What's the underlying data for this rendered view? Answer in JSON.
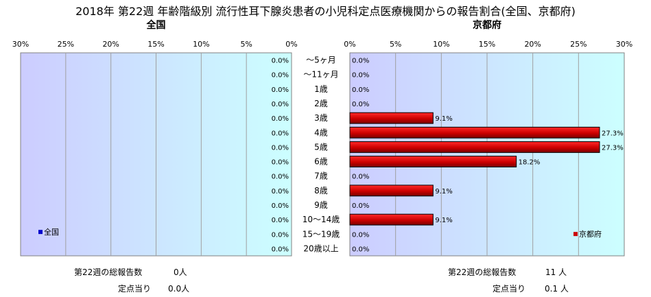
{
  "title": "2018年 第22週 年齢階級別 流行性耳下腺炎患者の小児科定点医療機関からの報告割合(全国、京都府)",
  "chart_data": [
    {
      "type": "bar",
      "orientation": "horizontal",
      "title": "全国",
      "series": [
        {
          "name": "全国",
          "values": [
            0.0,
            0.0,
            0.0,
            0.0,
            0.0,
            0.0,
            0.0,
            0.0,
            0.0,
            0.0,
            0.0,
            0.0,
            0.0,
            0.0
          ],
          "color": "#0000cc"
        }
      ],
      "value_labels": [
        "0.0%",
        "0.0%",
        "0.0%",
        "0.0%",
        "0.0%",
        "0.0%",
        "0.0%",
        "0.0%",
        "0.0%",
        "0.0%",
        "0.0%",
        "0.0%",
        "0.0%",
        "0.0%"
      ],
      "xlim": [
        0,
        30
      ],
      "x_reversed": true,
      "x_ticks": [
        "30%",
        "25%",
        "20%",
        "15%",
        "10%",
        "5%",
        "0%"
      ],
      "background": "#ccccff",
      "grid": true,
      "legend": "bottom-left"
    },
    {
      "type": "bar",
      "orientation": "horizontal",
      "title": "京都府",
      "series": [
        {
          "name": "京都府",
          "values": [
            0.0,
            0.0,
            0.0,
            0.0,
            9.1,
            27.3,
            27.3,
            18.2,
            0.0,
            9.1,
            0.0,
            9.1,
            0.0,
            0.0
          ],
          "color": "#cc0000"
        }
      ],
      "value_labels": [
        "0.0%",
        "0.0%",
        "0.0%",
        "0.0%",
        "9.1%",
        "27.3%",
        "27.3%",
        "18.2%",
        "0.0%",
        "9.1%",
        "0.0%",
        "9.1%",
        "0.0%",
        "0.0%"
      ],
      "xlim": [
        0,
        30
      ],
      "x_ticks": [
        "0%",
        "5%",
        "10%",
        "15%",
        "20%",
        "25%",
        "30%"
      ],
      "background": "#ccccff",
      "grid": true,
      "legend": "bottom-right"
    }
  ],
  "categories": [
    "～5ヶ月",
    "～11ヶ月",
    "1歳",
    "2歳",
    "3歳",
    "4歳",
    "5歳",
    "6歳",
    "7歳",
    "8歳",
    "9歳",
    "10～14歳",
    "15～19歳",
    "20歳以上"
  ],
  "footer": {
    "national_total_label": "第22週の総報告数",
    "national_total_value": "0人",
    "national_per_label": "定点当り",
    "national_per_value": "0.0人",
    "kyoto_total_label": "第22週の総報告数",
    "kyoto_total_value": "11 人",
    "kyoto_per_label": "定点当り",
    "kyoto_per_value": "0.1 人"
  }
}
